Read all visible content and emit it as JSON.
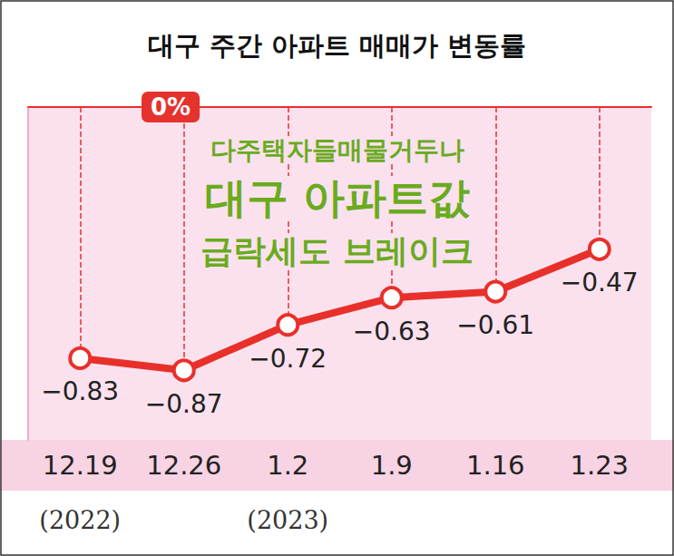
{
  "chart_data": {
    "type": "line",
    "title": "대구 주간 아파트 매매가 변동률",
    "headline": [
      "다주택자들매물거두나",
      "대구 아파트값",
      "급락세도 브레이크"
    ],
    "categories": [
      "12.19",
      "12.26",
      "1.2",
      "1.9",
      "1.16",
      "1.23"
    ],
    "sublabels": [
      "(2022)",
      null,
      "(2023)",
      null,
      null,
      null
    ],
    "values": [
      -0.83,
      -0.87,
      -0.72,
      -0.63,
      -0.61,
      -0.47
    ],
    "value_labels": [
      "−0.83",
      "−0.87",
      "−0.72",
      "−0.63",
      "−0.61",
      "−0.47"
    ],
    "color": "#e8302a",
    "ylim": [
      -1.1,
      0
    ],
    "yticks": [
      {
        "value": 0,
        "label": "0%"
      }
    ],
    "grid": true,
    "data_labels": true,
    "marker": "circle",
    "line_style": "solid"
  }
}
